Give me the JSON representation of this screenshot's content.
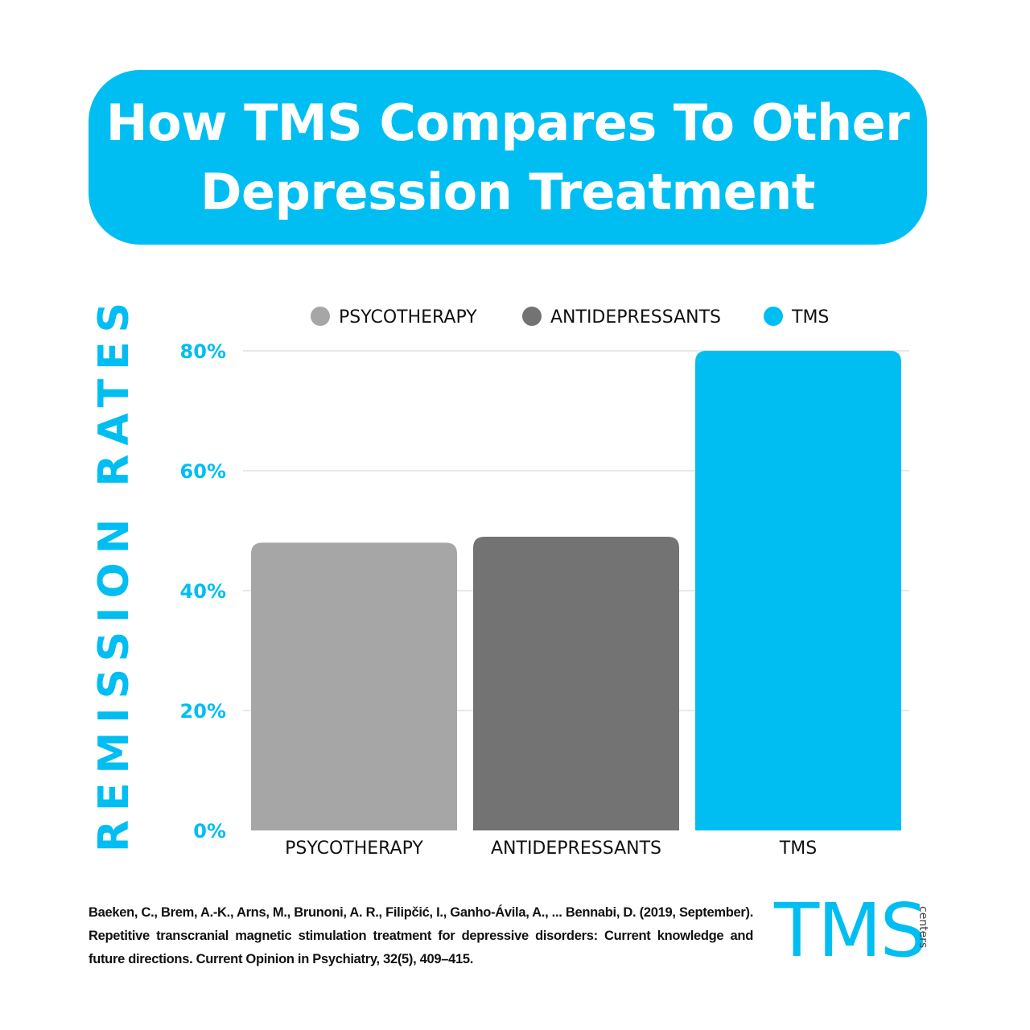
{
  "header": {
    "title_line1": "How TMS Compares To Other",
    "title_line2": "Depression Treatment"
  },
  "colors": {
    "accent": "#00BEF2",
    "psycotherapy": "#A6A6A6",
    "antidepressants": "#737373",
    "tms": "#00BEF2",
    "grid": "#D9D9D9",
    "text": "#111111"
  },
  "chart_data": {
    "type": "bar",
    "title": "How TMS Compares To Other Depression Treatment",
    "ylabel": "REMISSION RATES",
    "xlabel": "",
    "categories": [
      "PSYCOTHERAPY",
      "ANTIDEPRESSANTS",
      "TMS"
    ],
    "values": [
      48,
      49,
      80
    ],
    "unit": "%",
    "ylim": [
      0,
      80
    ],
    "yticks": [
      0,
      20,
      40,
      60,
      80
    ],
    "ytick_labels": [
      "0%",
      "20%",
      "40%",
      "60%",
      "80%"
    ],
    "grid": true,
    "legend": {
      "placement": "top",
      "entries": [
        "PSYCOTHERAPY",
        "ANTIDEPRESSANTS",
        "TMS"
      ]
    }
  },
  "citation": "Baeken, C., Brem, A.-K., Arns, M., Brunoni, A. R., Filipčić, I., Ganho-Ávila, A., ... Bennabi, D. (2019, September). Repetitive transcranial magnetic stimulation treatment for depressive disorders: Current knowledge and future directions. Current Opinion in Psychiatry, 32(5), 409–415.",
  "logo": {
    "main": "TMS",
    "sub": "centers"
  }
}
